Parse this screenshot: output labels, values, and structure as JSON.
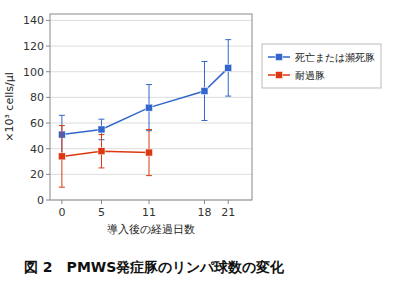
{
  "chart_data": {
    "type": "line",
    "title": "図 2　PMWS発症豚のリンパ球数の変化",
    "xlabel": "導入後の経過日数",
    "ylabel": "×10³ cells/μl",
    "xlim": [
      -1.5,
      24
    ],
    "xticks": [
      0,
      5,
      11,
      18,
      21
    ],
    "ylim": [
      0,
      145
    ],
    "yticks": [
      0,
      20,
      40,
      60,
      80,
      100,
      120,
      140
    ],
    "grid": true,
    "legend": "right",
    "series": [
      {
        "name": "死亡または瀕死豚",
        "color": "#3366cc",
        "marker": "square",
        "line_style": "solid",
        "x": [
          0,
          5,
          11,
          18,
          21
        ],
        "values": [
          51,
          55,
          72,
          85,
          103
        ],
        "errors": [
          15,
          8,
          18,
          23,
          22
        ]
      },
      {
        "name": "耐過豚",
        "color": "#dc3912",
        "marker": "square",
        "line_style": "solid",
        "x": [
          0,
          5,
          11
        ],
        "values": [
          34,
          38,
          37
        ],
        "errors": [
          24,
          13,
          18
        ]
      }
    ]
  }
}
